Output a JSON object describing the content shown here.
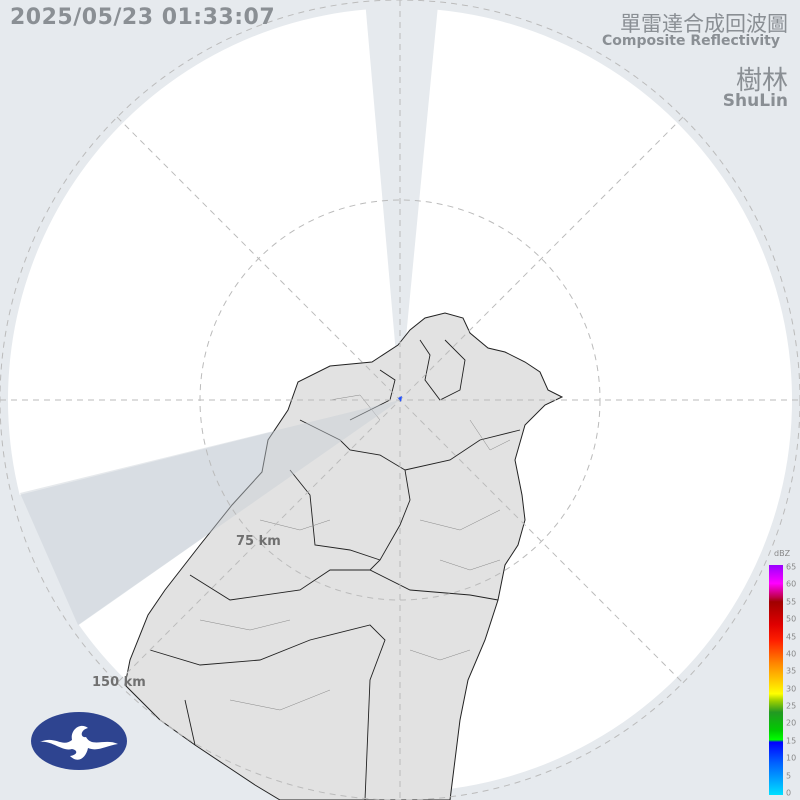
{
  "timestamp": "2025/05/23 01:33:07",
  "title_zh": "單雷達合成回波圖",
  "title_en": "Composite Reflectivity",
  "station_zh": "樹林",
  "station_en": "ShuLin",
  "range_labels": [
    "75 km",
    "150 km"
  ],
  "colorbar": {
    "unit": "dBZ",
    "ticks": [
      "65",
      "60",
      "55",
      "50",
      "45",
      "40",
      "35",
      "30",
      "25",
      "20",
      "15",
      "10",
      "5",
      "0"
    ]
  },
  "logo": "cwa-logo"
}
